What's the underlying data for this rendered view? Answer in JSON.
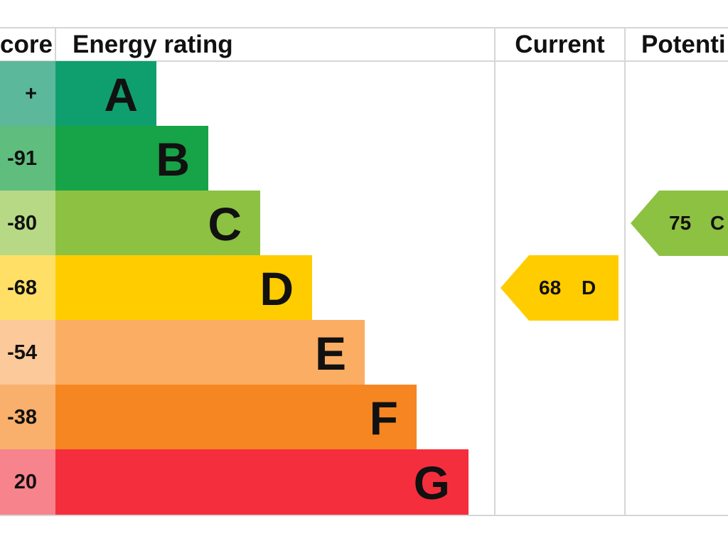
{
  "header": {
    "score_label": "core",
    "rating_label": "Energy rating",
    "current_label": "Current",
    "potential_label": "Potenti"
  },
  "bands": [
    {
      "letter": "A",
      "score": "+",
      "color": "#0f9f6e",
      "score_color": "#5cb89b"
    },
    {
      "letter": "B",
      "score": "-91",
      "color": "#17a347",
      "score_color": "#5fbd7d"
    },
    {
      "letter": "C",
      "score": "-80",
      "color": "#8dc142",
      "score_color": "#b7d985"
    },
    {
      "letter": "D",
      "score": "-68",
      "color": "#ffcc00",
      "score_color": "#ffdf66"
    },
    {
      "letter": "E",
      "score": "-54",
      "color": "#fbad63",
      "score_color": "#fcc99b"
    },
    {
      "letter": "F",
      "score": "-38",
      "color": "#f68622",
      "score_color": "#f9b06c"
    },
    {
      "letter": "G",
      "score": "20",
      "color": "#f42e3d",
      "score_color": "#f7838c"
    }
  ],
  "current": {
    "value": "68",
    "letter": "D",
    "band_index": 3,
    "color": "#ffcc00"
  },
  "potential": {
    "value": "75",
    "letter": "C",
    "band_index": 2,
    "color": "#8dc142"
  }
}
